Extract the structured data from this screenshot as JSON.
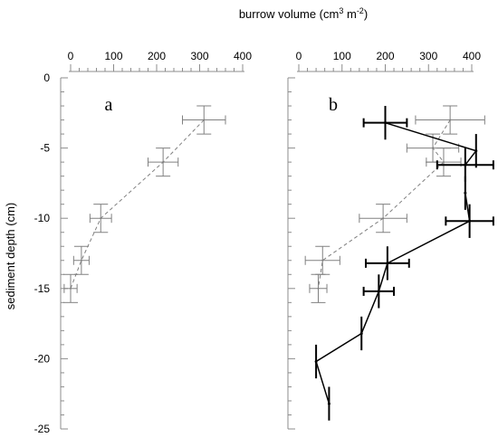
{
  "figure": {
    "top_xlabel_prefix": "burrow volume (cm",
    "top_xlabel_sup1": "3",
    "top_xlabel_middle": " m",
    "top_xlabel_sup2": "-2",
    "top_xlabel_suffix": ")",
    "ylabel": "sediment depth (cm)"
  },
  "chart_data": [
    {
      "type": "line",
      "panel_label": "a",
      "xlim": [
        0,
        400
      ],
      "ylim": [
        -25,
        0
      ],
      "x_ticks": [
        0,
        100,
        200,
        300,
        400
      ],
      "y_ticks": [
        0,
        -5,
        -10,
        -15,
        -20,
        -25
      ],
      "grid": false,
      "series": [
        {
          "style": "dashed-grey",
          "color": "#808080",
          "points": [
            {
              "x": 310,
              "y": -3,
              "xerr": 50,
              "yerr": 1
            },
            {
              "x": 215,
              "y": -6,
              "xerr": 35,
              "yerr": 1
            },
            {
              "x": 70,
              "y": -10,
              "xerr": 25,
              "yerr": 1
            },
            {
              "x": 25,
              "y": -13,
              "xerr": 18,
              "yerr": 1
            },
            {
              "x": 0,
              "y": -15,
              "xerr": 15,
              "yerr": 1
            }
          ]
        }
      ]
    },
    {
      "type": "line",
      "panel_label": "b",
      "xlim": [
        0,
        400
      ],
      "ylim": [
        -25,
        0
      ],
      "x_ticks": [
        0,
        100,
        200,
        300,
        400
      ],
      "y_ticks": [
        0,
        -5,
        -10,
        -15,
        -20,
        -25
      ],
      "grid": false,
      "series": [
        {
          "style": "dashed-grey",
          "color": "#808080",
          "points": [
            {
              "x": 350,
              "y": -3,
              "xerr": 80,
              "yerr": 1
            },
            {
              "x": 310,
              "y": -5,
              "xerr": 60,
              "yerr": 1
            },
            {
              "x": 335,
              "y": -6,
              "xerr": 40,
              "yerr": 1
            },
            {
              "x": 195,
              "y": -10,
              "xerr": 55,
              "yerr": 1
            },
            {
              "x": 55,
              "y": -13,
              "xerr": 40,
              "yerr": 1
            },
            {
              "x": 45,
              "y": -15,
              "xerr": 20,
              "yerr": 1
            }
          ]
        },
        {
          "style": "solid-black",
          "color": "#000000",
          "points": [
            {
              "x": 200,
              "y": -3.2,
              "xerr": 50,
              "yerr": 1.2
            },
            {
              "x": 410,
              "y": -5.2,
              "xerr": 0,
              "yerr": 1.2
            },
            {
              "x": 385,
              "y": -6.2,
              "xerr": 65,
              "yerr": 1.2
            },
            {
              "x": 385,
              "y": -8.2,
              "xerr": 0,
              "yerr": 1.2
            },
            {
              "x": 395,
              "y": -10.2,
              "xerr": 55,
              "yerr": 1.2
            },
            {
              "x": 205,
              "y": -13.2,
              "xerr": 50,
              "yerr": 1.2
            },
            {
              "x": 185,
              "y": -15.2,
              "xerr": 35,
              "yerr": 1.2
            },
            {
              "x": 145,
              "y": -18.2,
              "xerr": 0,
              "yerr": 1.2
            },
            {
              "x": 40,
              "y": -20.2,
              "xerr": 0,
              "yerr": 1.2
            },
            {
              "x": 70,
              "y": -23.2,
              "xerr": 0,
              "yerr": 1.2
            }
          ]
        }
      ]
    }
  ]
}
